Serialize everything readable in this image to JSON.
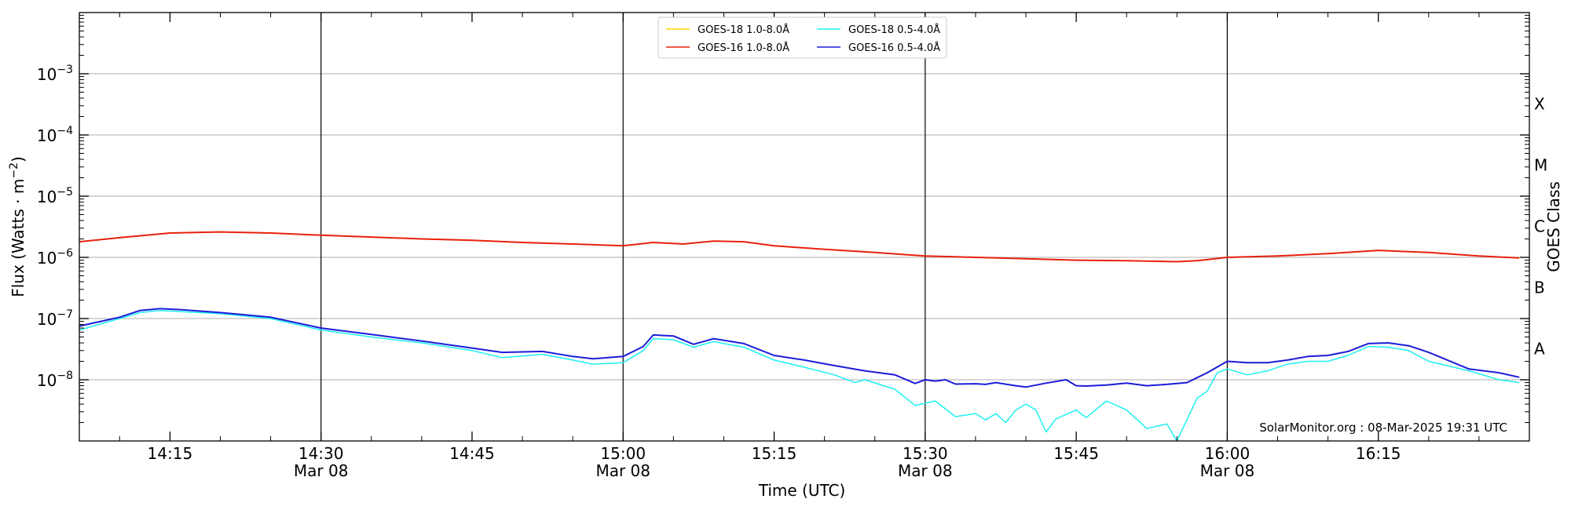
{
  "chart_data": {
    "type": "line",
    "xlabel": "Time (UTC)",
    "ylabel_prefix": "Flux (Watts · m",
    "ylabel_sup": "−2",
    "ylabel_suffix": ")",
    "right_label": "GOES Class",
    "credit": "SolarMonitor.org : 08-Mar-2025 19:31 UTC",
    "y_scale": "log",
    "ylim": [
      1e-09,
      0.01
    ],
    "xlim": [
      "14:06",
      "16:30"
    ],
    "grid": true,
    "legend_position": "top-center",
    "x_ticks": [
      {
        "t": "14:15",
        "label": "14:15",
        "sub": "",
        "major": false
      },
      {
        "t": "14:30",
        "label": "14:30",
        "sub": "Mar 08",
        "major": true
      },
      {
        "t": "14:45",
        "label": "14:45",
        "sub": "",
        "major": false
      },
      {
        "t": "15:00",
        "label": "15:00",
        "sub": "Mar 08",
        "major": true
      },
      {
        "t": "15:15",
        "label": "15:15",
        "sub": "",
        "major": false
      },
      {
        "t": "15:30",
        "label": "15:30",
        "sub": "Mar 08",
        "major": true
      },
      {
        "t": "15:45",
        "label": "15:45",
        "sub": "",
        "major": false
      },
      {
        "t": "16:00",
        "label": "16:00",
        "sub": "Mar 08",
        "major": true
      },
      {
        "t": "16:15",
        "label": "16:15",
        "sub": "",
        "major": false
      }
    ],
    "y_ticks": [
      {
        "exp": -8,
        "label_base": "10",
        "label_exp": "−8"
      },
      {
        "exp": -7,
        "label_base": "10",
        "label_exp": "−7"
      },
      {
        "exp": -6,
        "label_base": "10",
        "label_exp": "−6"
      },
      {
        "exp": -5,
        "label_base": "10",
        "label_exp": "−5"
      },
      {
        "exp": -4,
        "label_base": "10",
        "label_exp": "−4"
      },
      {
        "exp": -3,
        "label_base": "10",
        "label_exp": "−3"
      }
    ],
    "goes_classes": [
      {
        "label": "A",
        "flux": 3.2e-08
      },
      {
        "label": "B",
        "flux": 3.2e-07
      },
      {
        "label": "C",
        "flux": 3.2e-06
      },
      {
        "label": "M",
        "flux": 3.2e-05
      },
      {
        "label": "X",
        "flux": 0.00032
      }
    ],
    "series": [
      {
        "name": "GOES-18 1.0-8.0Å",
        "color": "#ffd500",
        "width": 1.5,
        "points": [
          [
            "14:06",
            1.8e-06
          ],
          [
            "14:10",
            2.1e-06
          ],
          [
            "14:15",
            2.5e-06
          ],
          [
            "14:20",
            2.6e-06
          ],
          [
            "14:25",
            2.5e-06
          ],
          [
            "14:30",
            2.3e-06
          ],
          [
            "14:35",
            2.15e-06
          ],
          [
            "14:40",
            2e-06
          ],
          [
            "14:45",
            1.9e-06
          ],
          [
            "14:50",
            1.75e-06
          ],
          [
            "14:55",
            1.65e-06
          ],
          [
            "15:00",
            1.55e-06
          ],
          [
            "15:03",
            1.75e-06
          ],
          [
            "15:06",
            1.65e-06
          ],
          [
            "15:09",
            1.85e-06
          ],
          [
            "15:12",
            1.8e-06
          ],
          [
            "15:15",
            1.55e-06
          ],
          [
            "15:20",
            1.35e-06
          ],
          [
            "15:25",
            1.2e-06
          ],
          [
            "15:30",
            1.05e-06
          ],
          [
            "15:35",
            1e-06
          ],
          [
            "15:40",
            9.5e-07
          ],
          [
            "15:45",
            9e-07
          ],
          [
            "15:50",
            8.8e-07
          ],
          [
            "15:55",
            8.5e-07
          ],
          [
            "15:57",
            8.8e-07
          ],
          [
            "16:00",
            1e-06
          ],
          [
            "16:05",
            1.05e-06
          ],
          [
            "16:10",
            1.15e-06
          ],
          [
            "16:15",
            1.3e-06
          ],
          [
            "16:20",
            1.2e-06
          ],
          [
            "16:25",
            1.05e-06
          ],
          [
            "16:29",
            9.8e-07
          ]
        ]
      },
      {
        "name": "GOES-16 1.0-8.0Å",
        "color": "#e8210f",
        "width": 2,
        "points": [
          [
            "14:06",
            1.8e-06
          ],
          [
            "14:10",
            2.1e-06
          ],
          [
            "14:15",
            2.5e-06
          ],
          [
            "14:20",
            2.6e-06
          ],
          [
            "14:25",
            2.5e-06
          ],
          [
            "14:30",
            2.3e-06
          ],
          [
            "14:35",
            2.15e-06
          ],
          [
            "14:40",
            2e-06
          ],
          [
            "14:45",
            1.9e-06
          ],
          [
            "14:50",
            1.75e-06
          ],
          [
            "14:55",
            1.65e-06
          ],
          [
            "15:00",
            1.55e-06
          ],
          [
            "15:03",
            1.75e-06
          ],
          [
            "15:06",
            1.65e-06
          ],
          [
            "15:09",
            1.85e-06
          ],
          [
            "15:12",
            1.8e-06
          ],
          [
            "15:15",
            1.55e-06
          ],
          [
            "15:20",
            1.35e-06
          ],
          [
            "15:25",
            1.2e-06
          ],
          [
            "15:30",
            1.05e-06
          ],
          [
            "15:35",
            1e-06
          ],
          [
            "15:40",
            9.5e-07
          ],
          [
            "15:45",
            9e-07
          ],
          [
            "15:50",
            8.8e-07
          ],
          [
            "15:55",
            8.5e-07
          ],
          [
            "15:57",
            8.8e-07
          ],
          [
            "16:00",
            1e-06
          ],
          [
            "16:05",
            1.05e-06
          ],
          [
            "16:10",
            1.15e-06
          ],
          [
            "16:15",
            1.3e-06
          ],
          [
            "16:20",
            1.2e-06
          ],
          [
            "16:25",
            1.05e-06
          ],
          [
            "16:29",
            9.8e-07
          ]
        ]
      },
      {
        "name": "GOES-18 0.5-4.0Å",
        "color": "#1ef0f0",
        "width": 1.5,
        "points": [
          [
            "14:06",
            6.5e-08
          ],
          [
            "14:10",
            1e-07
          ],
          [
            "14:12",
            1.25e-07
          ],
          [
            "14:14",
            1.35e-07
          ],
          [
            "14:16",
            1.3e-07
          ],
          [
            "14:20",
            1.2e-07
          ],
          [
            "14:25",
            1e-07
          ],
          [
            "14:30",
            6.5e-08
          ],
          [
            "14:35",
            5e-08
          ],
          [
            "14:40",
            4e-08
          ],
          [
            "14:45",
            3e-08
          ],
          [
            "14:48",
            2.3e-08
          ],
          [
            "14:52",
            2.6e-08
          ],
          [
            "14:55",
            2.1e-08
          ],
          [
            "14:57",
            1.8e-08
          ],
          [
            "15:00",
            1.9e-08
          ],
          [
            "15:02",
            3e-08
          ],
          [
            "15:03",
            4.7e-08
          ],
          [
            "15:05",
            4.5e-08
          ],
          [
            "15:07",
            3.4e-08
          ],
          [
            "15:09",
            4.2e-08
          ],
          [
            "15:12",
            3.4e-08
          ],
          [
            "15:15",
            2.1e-08
          ],
          [
            "15:18",
            1.6e-08
          ],
          [
            "15:21",
            1.2e-08
          ],
          [
            "15:23",
            9e-09
          ],
          [
            "15:24",
            1e-08
          ],
          [
            "15:27",
            7e-09
          ],
          [
            "15:29",
            3.8e-09
          ],
          [
            "15:31",
            4.5e-09
          ],
          [
            "15:33",
            2.5e-09
          ],
          [
            "15:35",
            2.8e-09
          ],
          [
            "15:36",
            2.2e-09
          ],
          [
            "15:37",
            2.8e-09
          ],
          [
            "15:38",
            2e-09
          ],
          [
            "15:39",
            3.2e-09
          ],
          [
            "15:40",
            4e-09
          ],
          [
            "15:41",
            3.2e-09
          ],
          [
            "15:42",
            1.4e-09
          ],
          [
            "15:43",
            2.3e-09
          ],
          [
            "15:45",
            3.2e-09
          ],
          [
            "15:46",
            2.4e-09
          ],
          [
            "15:48",
            4.5e-09
          ],
          [
            "15:50",
            3.2e-09
          ],
          [
            "15:52",
            1.6e-09
          ],
          [
            "15:54",
            1.9e-09
          ],
          [
            "15:55",
            1e-09
          ],
          [
            "15:57",
            5e-09
          ],
          [
            "15:58",
            6.5e-09
          ],
          [
            "15:59",
            1.3e-08
          ],
          [
            "16:00",
            1.5e-08
          ],
          [
            "16:02",
            1.2e-08
          ],
          [
            "16:04",
            1.4e-08
          ],
          [
            "16:06",
            1.8e-08
          ],
          [
            "16:08",
            2e-08
          ],
          [
            "16:10",
            2e-08
          ],
          [
            "16:12",
            2.5e-08
          ],
          [
            "16:14",
            3.5e-08
          ],
          [
            "16:16",
            3.4e-08
          ],
          [
            "16:18",
            3e-08
          ],
          [
            "16:20",
            2e-08
          ],
          [
            "16:24",
            1.4e-08
          ],
          [
            "16:27",
            1e-08
          ],
          [
            "16:29",
            9e-09
          ]
        ]
      },
      {
        "name": "GOES-16 0.5-4.0Å",
        "color": "#1c1cd9",
        "width": 2,
        "points": [
          [
            "14:06",
            7.5e-08
          ],
          [
            "14:10",
            1.05e-07
          ],
          [
            "14:12",
            1.35e-07
          ],
          [
            "14:14",
            1.45e-07
          ],
          [
            "14:16",
            1.4e-07
          ],
          [
            "14:20",
            1.25e-07
          ],
          [
            "14:25",
            1.05e-07
          ],
          [
            "14:30",
            7e-08
          ],
          [
            "14:35",
            5.5e-08
          ],
          [
            "14:40",
            4.3e-08
          ],
          [
            "14:45",
            3.3e-08
          ],
          [
            "14:48",
            2.8e-08
          ],
          [
            "14:52",
            2.9e-08
          ],
          [
            "14:55",
            2.4e-08
          ],
          [
            "14:57",
            2.2e-08
          ],
          [
            "15:00",
            2.4e-08
          ],
          [
            "15:02",
            3.5e-08
          ],
          [
            "15:03",
            5.4e-08
          ],
          [
            "15:05",
            5.2e-08
          ],
          [
            "15:07",
            3.8e-08
          ],
          [
            "15:09",
            4.7e-08
          ],
          [
            "15:12",
            3.9e-08
          ],
          [
            "15:15",
            2.5e-08
          ],
          [
            "15:18",
            2.1e-08
          ],
          [
            "15:21",
            1.7e-08
          ],
          [
            "15:24",
            1.4e-08
          ],
          [
            "15:27",
            1.2e-08
          ],
          [
            "15:29",
            8.7e-09
          ],
          [
            "15:30",
            1e-08
          ],
          [
            "15:31",
            9.5e-09
          ],
          [
            "15:32",
            1e-08
          ],
          [
            "15:33",
            8.5e-09
          ],
          [
            "15:35",
            8.6e-09
          ],
          [
            "15:36",
            8.4e-09
          ],
          [
            "15:37",
            9e-09
          ],
          [
            "15:39",
            8e-09
          ],
          [
            "15:40",
            7.6e-09
          ],
          [
            "15:42",
            8.8e-09
          ],
          [
            "15:44",
            1e-08
          ],
          [
            "15:45",
            8e-09
          ],
          [
            "15:46",
            7.9e-09
          ],
          [
            "15:48",
            8.2e-09
          ],
          [
            "15:50",
            8.8e-09
          ],
          [
            "15:52",
            8e-09
          ],
          [
            "15:54",
            8.4e-09
          ],
          [
            "15:56",
            9e-09
          ],
          [
            "15:58",
            1.3e-08
          ],
          [
            "16:00",
            2e-08
          ],
          [
            "16:02",
            1.9e-08
          ],
          [
            "16:04",
            1.9e-08
          ],
          [
            "16:06",
            2.1e-08
          ],
          [
            "16:08",
            2.4e-08
          ],
          [
            "16:10",
            2.5e-08
          ],
          [
            "16:12",
            2.9e-08
          ],
          [
            "16:14",
            3.9e-08
          ],
          [
            "16:16",
            4e-08
          ],
          [
            "16:18",
            3.6e-08
          ],
          [
            "16:20",
            2.8e-08
          ],
          [
            "16:24",
            1.5e-08
          ],
          [
            "16:27",
            1.3e-08
          ],
          [
            "16:29",
            1.1e-08
          ]
        ]
      }
    ]
  }
}
